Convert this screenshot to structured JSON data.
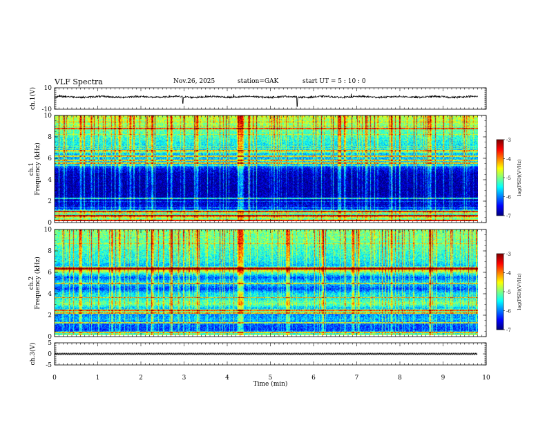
{
  "header": {
    "title": "VLF Spectra",
    "date": "Nov.26, 2025",
    "station": "station=GAK",
    "start": "start UT =  5 : 10 : 0"
  },
  "chart_data": {
    "type": "heatmap",
    "title": "VLF Spectra",
    "xlabel": "Time (min)",
    "x_range": [
      0,
      10
    ],
    "x_ticks": [
      "0",
      "1",
      "2",
      "3",
      "4",
      "5",
      "6",
      "7",
      "8",
      "9",
      "10"
    ],
    "data_end_min": 9.8,
    "panels": [
      {
        "name": "ch1-waveform",
        "type": "line",
        "ylabel": "ch.1(V)",
        "ylim": [
          -10,
          10
        ],
        "y_ticks": [
          "10",
          "-10"
        ],
        "baseline": 1.5,
        "spikes": [
          {
            "t": 5.62,
            "v": -7.5
          },
          {
            "t": 2.97,
            "v": -4.5
          },
          {
            "t": 4.15,
            "v": 4.0
          },
          {
            "t": 6.87,
            "v": 4.5
          },
          {
            "t": 0.12,
            "v": 3.5
          }
        ]
      },
      {
        "name": "ch1-spectrogram",
        "type": "heatmap",
        "ylabel": "Frequency (kHz)",
        "channel_label": "ch.1",
        "ylim": [
          0,
          10
        ],
        "y_ticks": [
          "0",
          "2",
          "4",
          "6",
          "8",
          "10"
        ],
        "profile_khz": [
          0,
          0.3,
          0.5,
          0.7,
          0.9,
          1.0,
          1.2,
          2.0,
          3.0,
          4.5,
          5.0,
          5.3,
          5.5,
          6.0,
          7.0,
          8.0,
          9.0,
          10.0
        ],
        "profile_log_psd": [
          -4.5,
          -5.2,
          -4.0,
          -5.6,
          -4.6,
          -5.0,
          -6.5,
          -6.8,
          -6.9,
          -6.8,
          -6.5,
          -5.9,
          -5.6,
          -5.8,
          -5.6,
          -5.3,
          -5.0,
          -4.7
        ],
        "bands_khz": [
          0.1,
          0.55,
          0.95,
          2.2,
          5.5,
          5.8,
          6.2,
          6.7,
          8.8
        ],
        "burst_min": [
          0.6,
          1.5,
          1.75,
          2.25,
          2.7,
          3.3,
          4.25,
          4.3,
          4.35,
          4.5,
          6.6,
          7.8,
          8.7
        ]
      },
      {
        "name": "ch2-spectrogram",
        "type": "heatmap",
        "ylabel": "Frequency (kHz)",
        "channel_label": "ch.2",
        "ylim": [
          0,
          10
        ],
        "y_ticks": [
          "0",
          "2",
          "4",
          "6",
          "8",
          "10"
        ],
        "profile_khz": [
          0,
          0.5,
          1.0,
          1.5,
          2.0,
          2.3,
          2.6,
          3.0,
          3.5,
          4.0,
          4.4,
          5.0,
          5.5,
          5.9,
          6.3,
          6.6,
          7.0,
          8.0,
          9.0,
          10.0
        ],
        "profile_log_psd": [
          -4.8,
          -6.3,
          -6.2,
          -5.8,
          -6.0,
          -5.0,
          -5.8,
          -5.0,
          -5.5,
          -5.6,
          -6.3,
          -5.6,
          -6.2,
          -5.3,
          -4.2,
          -5.8,
          -5.5,
          -5.3,
          -5.1,
          -5.0
        ],
        "bands_khz": [
          0.3,
          1.2,
          2.1,
          2.4,
          3.6,
          4.9,
          6.3,
          6.4
        ],
        "burst_min": [
          0.6,
          1.5,
          2.25,
          2.7,
          3.3,
          4.25,
          4.3,
          4.35,
          5.4,
          6.2,
          6.9,
          7.8,
          8.7
        ]
      },
      {
        "name": "ch3-waveform",
        "type": "line",
        "ylabel": "ch.3(V)",
        "ylim": [
          -5,
          5
        ],
        "y_ticks": [
          "5",
          "0",
          "-5"
        ],
        "baseline": 0,
        "ripple": 0.35
      }
    ],
    "colorbars": [
      {
        "name": "colorbar-ch1",
        "label": "log(PSD)(V²/Hz)",
        "range": [
          -7,
          -3
        ],
        "ticks": [
          "-3",
          "-4",
          "-5",
          "-6",
          "-7"
        ]
      },
      {
        "name": "colorbar-ch2",
        "label": "log(PSD)(V²/Hz)",
        "range": [
          -7,
          -3
        ],
        "ticks": [
          "-3",
          "-4",
          "-5",
          "-6",
          "-7"
        ]
      }
    ]
  }
}
